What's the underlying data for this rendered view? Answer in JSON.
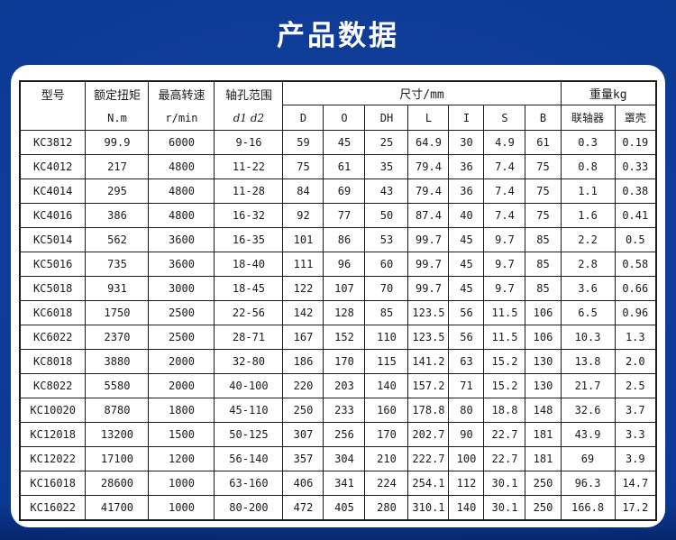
{
  "page": {
    "title": "产品数据"
  },
  "colors": {
    "background_blue": "#0b3a94",
    "background_edge": "#04297a",
    "panel_white": "#ffffff",
    "table_border": "#1a1a1a",
    "title_text": "#ffffff"
  },
  "table": {
    "header": {
      "model": {
        "label": "型号",
        "sub": ""
      },
      "torque": {
        "label": "额定扭矩",
        "sub": "N.m"
      },
      "speed": {
        "label": "最高转速",
        "sub": "r/min"
      },
      "bore": {
        "label": "轴孔范围",
        "sub": "d1 d2"
      },
      "size_group": {
        "label": "尺寸/mm",
        "columns": [
          "D",
          "O",
          "DH",
          "L",
          "I",
          "S",
          "B"
        ]
      },
      "weight_group": {
        "label": "重量kg",
        "columns": [
          "联轴器",
          "罩壳"
        ]
      }
    },
    "rows": [
      [
        "KC3812",
        "99.9",
        "6000",
        "9-16",
        "59",
        "45",
        "25",
        "64.9",
        "30",
        "4.9",
        "61",
        "0.3",
        "0.19"
      ],
      [
        "KC4012",
        "217",
        "4800",
        "11-22",
        "75",
        "61",
        "35",
        "79.4",
        "36",
        "7.4",
        "75",
        "0.8",
        "0.33"
      ],
      [
        "KC4014",
        "295",
        "4800",
        "11-28",
        "84",
        "69",
        "43",
        "79.4",
        "36",
        "7.4",
        "75",
        "1.1",
        "0.38"
      ],
      [
        "KC4016",
        "386",
        "4800",
        "16-32",
        "92",
        "77",
        "50",
        "87.4",
        "40",
        "7.4",
        "75",
        "1.6",
        "0.41"
      ],
      [
        "KC5014",
        "562",
        "3600",
        "16-35",
        "101",
        "86",
        "53",
        "99.7",
        "45",
        "9.7",
        "85",
        "2.2",
        "0.5"
      ],
      [
        "KC5016",
        "735",
        "3600",
        "18-40",
        "111",
        "96",
        "60",
        "99.7",
        "45",
        "9.7",
        "85",
        "2.8",
        "0.58"
      ],
      [
        "KC5018",
        "931",
        "3000",
        "18-45",
        "122",
        "107",
        "70",
        "99.7",
        "45",
        "9.7",
        "85",
        "3.6",
        "0.66"
      ],
      [
        "KC6018",
        "1750",
        "2500",
        "22-56",
        "142",
        "128",
        "85",
        "123.5",
        "56",
        "11.5",
        "106",
        "6.5",
        "0.96"
      ],
      [
        "KC6022",
        "2370",
        "2500",
        "28-71",
        "167",
        "152",
        "110",
        "123.5",
        "56",
        "11.5",
        "106",
        "10.3",
        "1.3"
      ],
      [
        "KC8018",
        "3880",
        "2000",
        "32-80",
        "186",
        "170",
        "115",
        "141.2",
        "63",
        "15.2",
        "130",
        "13.8",
        "2.0"
      ],
      [
        "KC8022",
        "5580",
        "2000",
        "40-100",
        "220",
        "203",
        "140",
        "157.2",
        "71",
        "15.2",
        "130",
        "21.7",
        "2.5"
      ],
      [
        "KC10020",
        "8780",
        "1800",
        "45-110",
        "250",
        "233",
        "160",
        "178.8",
        "80",
        "18.8",
        "148",
        "32.6",
        "3.7"
      ],
      [
        "KC12018",
        "13200",
        "1500",
        "50-125",
        "307",
        "256",
        "170",
        "202.7",
        "90",
        "22.7",
        "181",
        "43.9",
        "3.3"
      ],
      [
        "KC12022",
        "17100",
        "1200",
        "56-140",
        "357",
        "304",
        "210",
        "222.7",
        "100",
        "22.7",
        "181",
        "69",
        "3.9"
      ],
      [
        "KC16018",
        "28600",
        "1000",
        "63-160",
        "406",
        "341",
        "224",
        "254.1",
        "112",
        "30.1",
        "250",
        "96.3",
        "14.7"
      ],
      [
        "KC16022",
        "41700",
        "1000",
        "80-200",
        "472",
        "405",
        "280",
        "310.1",
        "140",
        "30.1",
        "250",
        "166.8",
        "17.2"
      ]
    ]
  }
}
